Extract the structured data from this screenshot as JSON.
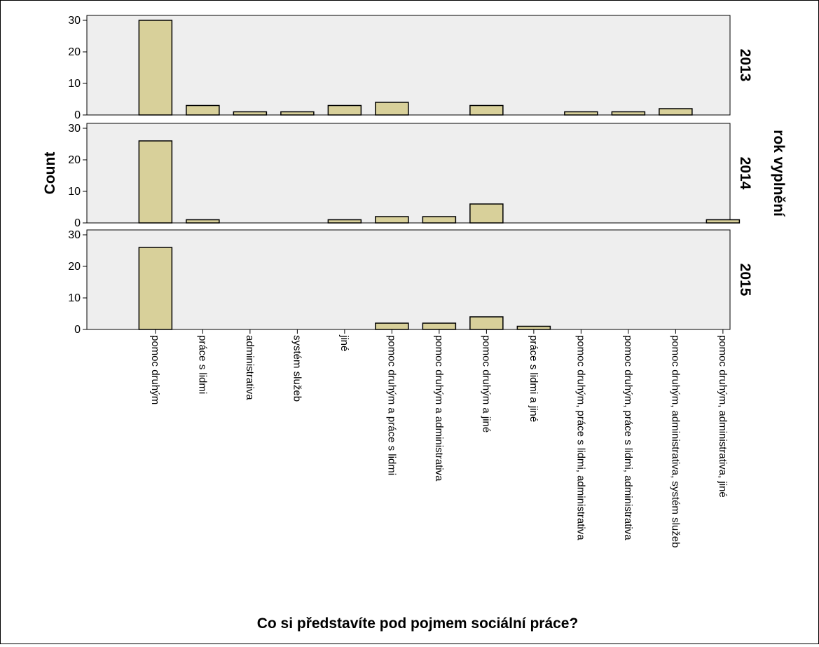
{
  "chart_data": {
    "type": "bar",
    "xlabel": "Co si představíte pod pojmem sociální práce?",
    "ylabel": "Count",
    "facet_label": "rok vyplnění",
    "ylim": [
      0,
      30
    ],
    "yticks": [
      0,
      10,
      20,
      30
    ],
    "grid": false,
    "bar_color": "#d8d09a",
    "panel_background": "#eeeeee",
    "categories": [
      "pomoc druhým",
      "práce s lidmi",
      "administrativa",
      "systém služeb",
      "jiné",
      "pomoc druhým a práce s lidmi",
      "pomoc druhým a administrativa",
      "pomoc druhým a jiné",
      "práce s lidmi a jiné",
      "pomoc druhým, práce s lidmi, administrativa",
      "pomoc druhým, práce s lidmi, administrativa",
      "pomoc druhým, administrativa, systém služeb",
      "pomoc druhým, administrativa, jiné"
    ],
    "series": [
      {
        "name": "2013",
        "values": [
          30,
          3,
          1,
          1,
          3,
          4,
          0,
          3,
          0,
          1,
          1,
          2,
          0
        ]
      },
      {
        "name": "2014",
        "values": [
          26,
          1,
          0,
          0,
          1,
          2,
          2,
          6,
          0,
          0,
          0,
          0,
          1
        ]
      },
      {
        "name": "2015",
        "values": [
          26,
          0,
          0,
          0,
          0,
          2,
          2,
          4,
          1,
          0,
          0,
          0,
          0
        ]
      }
    ]
  }
}
